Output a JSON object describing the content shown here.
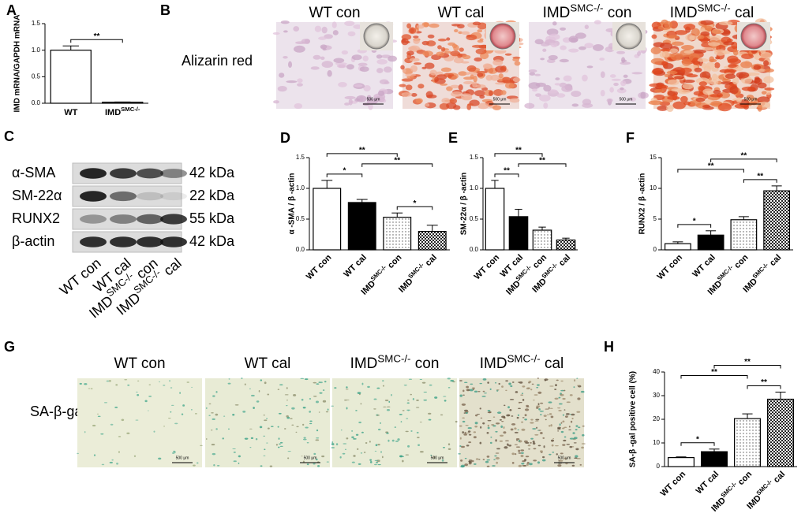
{
  "figure_b": {
    "panel": "B",
    "row_label": "Alizarin red",
    "columns": [
      [
        "WT con"
      ],
      [
        "WT cal"
      ],
      [
        "IMD",
        "SMC-/-",
        " con"
      ],
      [
        "IMD",
        "SMC-/-",
        " cal"
      ]
    ],
    "scale_label": "500 μm"
  },
  "figure_c": {
    "panel": "C",
    "rows": [
      {
        "protein": "α-SMA",
        "size": "42 kDa"
      },
      {
        "protein": "SM-22α",
        "size": "22 kDa"
      },
      {
        "protein": "RUNX2",
        "size": "55 kDa"
      },
      {
        "protein": "β-actin",
        "size": "42 kDa"
      }
    ],
    "lanes": [
      [
        "WT  con"
      ],
      [
        "WT  cal"
      ],
      [
        "IMD",
        "SMC-/-",
        " con"
      ],
      [
        "IMD",
        "SMC-/-",
        " cal"
      ]
    ]
  },
  "figure_g": {
    "panel": "G",
    "row_label": "SA-β-gal",
    "columns": [
      [
        "WT con"
      ],
      [
        "WT cal"
      ],
      [
        "IMD",
        "SMC-/-",
        " con"
      ],
      [
        "IMD",
        "SMC-/-",
        " cal"
      ]
    ],
    "scale_label": "500 μm"
  },
  "chart_data": [
    {
      "panel": "A",
      "type": "bar",
      "y_label": "IMD mRNA/GAPDH mRNA",
      "categories": [
        [
          "WT"
        ],
        [
          "IMD",
          "SMC-/-"
        ]
      ],
      "values": [
        1.0,
        0.02
      ],
      "errors": [
        0.08,
        0.005
      ],
      "ylim": [
        0,
        1.5
      ],
      "yticks": [
        {
          "value": 0,
          "label": "0.0"
        },
        0.5,
        {
          "value": 1,
          "label": "1.0"
        },
        1.5
      ],
      "fills": [
        "white",
        "white"
      ],
      "label_rotation": "none",
      "brackets": [
        {
          "pair": [
            0,
            1
          ],
          "label": "**"
        }
      ]
    },
    {
      "panel": "D",
      "type": "bar",
      "y_label": "α -SMA / β -actin",
      "categories": [
        [
          "WT con"
        ],
        [
          "WT cal"
        ],
        [
          "IMD",
          "SMC-/-",
          " con"
        ],
        [
          "IMD",
          "SMC-/-",
          " cal"
        ]
      ],
      "values": [
        1.0,
        0.77,
        0.53,
        0.3
      ],
      "errors": [
        0.13,
        0.05,
        0.07,
        0.1
      ],
      "ylim": [
        0,
        1.5
      ],
      "yticks": [
        {
          "value": 0,
          "label": "0.0"
        },
        0.5,
        {
          "value": 1,
          "label": "1.0"
        },
        1.5
      ],
      "fills": [
        "white",
        "black",
        "dots",
        "checker"
      ],
      "label_rotation": "diagonal",
      "brackets": [
        {
          "pair": [
            0,
            1
          ],
          "label": "*"
        },
        {
          "pair": [
            2,
            3
          ],
          "label": "*"
        },
        {
          "pair": [
            1,
            3
          ],
          "label": "**"
        },
        {
          "pair": [
            0,
            2
          ],
          "label": "**"
        }
      ]
    },
    {
      "panel": "E",
      "type": "bar",
      "y_label": "SM-22α / β -actin",
      "categories": [
        [
          "WT con"
        ],
        [
          "WT cal"
        ],
        [
          "IMD",
          "SMC-/-",
          " con"
        ],
        [
          "IMD",
          "SMC-/-",
          " cal"
        ]
      ],
      "values": [
        1.0,
        0.54,
        0.32,
        0.16
      ],
      "errors": [
        0.13,
        0.12,
        0.05,
        0.03
      ],
      "ylim": [
        0,
        1.5
      ],
      "yticks": [
        {
          "value": 0,
          "label": "0.0"
        },
        0.5,
        {
          "value": 1,
          "label": "1.0"
        },
        1.5
      ],
      "fills": [
        "white",
        "black",
        "dots",
        "checker"
      ],
      "label_rotation": "diagonal",
      "brackets": [
        {
          "pair": [
            0,
            1
          ],
          "label": "**"
        },
        {
          "pair": [
            1,
            3
          ],
          "label": "**"
        },
        {
          "pair": [
            0,
            2
          ],
          "label": "**"
        }
      ]
    },
    {
      "panel": "F",
      "type": "bar",
      "y_label": "RUNX2 / β -actin",
      "categories": [
        [
          "WT con"
        ],
        [
          "WT cal"
        ],
        [
          "IMD",
          "SMC-/-",
          " con"
        ],
        [
          "IMD",
          "SMC-/-",
          " cal"
        ]
      ],
      "values": [
        1.0,
        2.4,
        4.9,
        9.6
      ],
      "errors": [
        0.3,
        0.7,
        0.5,
        0.8
      ],
      "ylim": [
        0,
        15
      ],
      "yticks": [
        0,
        5,
        10,
        15
      ],
      "fills": [
        "white",
        "black",
        "dots",
        "checker"
      ],
      "label_rotation": "diagonal",
      "brackets": [
        {
          "pair": [
            0,
            1
          ],
          "label": "*"
        },
        {
          "pair": [
            2,
            3
          ],
          "label": "**"
        },
        {
          "pair": [
            0,
            2
          ],
          "label": "**"
        },
        {
          "pair": [
            1,
            3
          ],
          "label": "**"
        }
      ]
    },
    {
      "panel": "H",
      "type": "bar",
      "y_label": "SA-β -gal positive cell (%)",
      "categories": [
        [
          "WT con"
        ],
        [
          "WT cal"
        ],
        [
          "IMD",
          "SMC-/-",
          " con"
        ],
        [
          "IMD",
          "SMC-/-",
          " cal"
        ]
      ],
      "values": [
        3.8,
        6.3,
        20.3,
        28.5
      ],
      "errors": [
        0.3,
        1.1,
        2.0,
        3.0
      ],
      "ylim": [
        0,
        40
      ],
      "yticks": [
        0,
        10,
        20,
        30,
        40
      ],
      "fills": [
        "white",
        "black",
        "dots",
        "checker"
      ],
      "label_rotation": "diagonal",
      "brackets": [
        {
          "pair": [
            0,
            1
          ],
          "label": "*"
        },
        {
          "pair": [
            2,
            3
          ],
          "label": "**"
        },
        {
          "pair": [
            0,
            2
          ],
          "label": "**"
        },
        {
          "pair": [
            1,
            3
          ],
          "label": "**"
        }
      ]
    }
  ]
}
